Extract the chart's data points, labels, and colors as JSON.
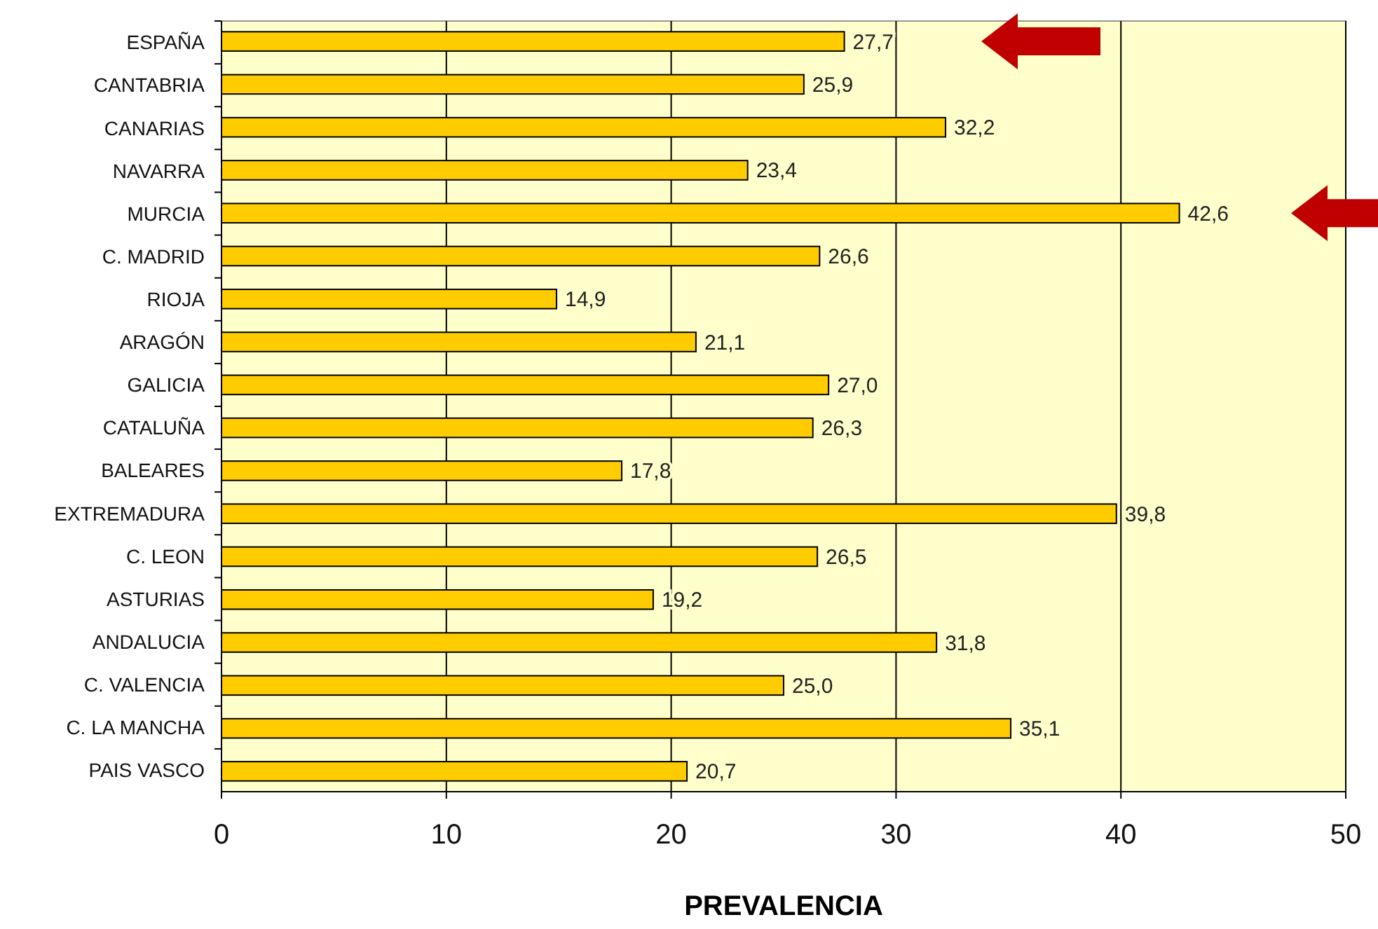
{
  "chart_data": {
    "type": "bar",
    "orientation": "horizontal",
    "xlabel": "PREVALENCIA",
    "categories": [
      "ESPAÑA",
      "CANTABRIA",
      "CANARIAS",
      "NAVARRA",
      "MURCIA",
      "C. MADRID",
      "RIOJA",
      "ARAGÓN",
      "GALICIA",
      "CATALUÑA",
      "BALEARES",
      "EXTREMADURA",
      "C. LEON",
      "ASTURIAS",
      "ANDALUCIA",
      "C. VALENCIA",
      "C. LA MANCHA",
      "PAIS VASCO"
    ],
    "values": [
      27.7,
      25.9,
      32.2,
      23.4,
      42.6,
      26.6,
      14.9,
      21.1,
      27.0,
      26.3,
      17.8,
      39.8,
      26.5,
      19.2,
      31.8,
      25.0,
      35.1,
      20.7
    ],
    "value_labels": [
      "27,7",
      "25,9",
      "32,2",
      "23,4",
      "42,6",
      "26,6",
      "14,9",
      "21,1",
      "27,0",
      "26,3",
      "17,8",
      "39,8",
      "26,5",
      "19,2",
      "31,8",
      "25,0",
      "35,1",
      "20,7"
    ],
    "color": "#ffcc00",
    "xlim": [
      0,
      50
    ],
    "xticks": [
      0,
      10,
      20,
      30,
      40,
      50
    ],
    "grid": "x"
  }
}
